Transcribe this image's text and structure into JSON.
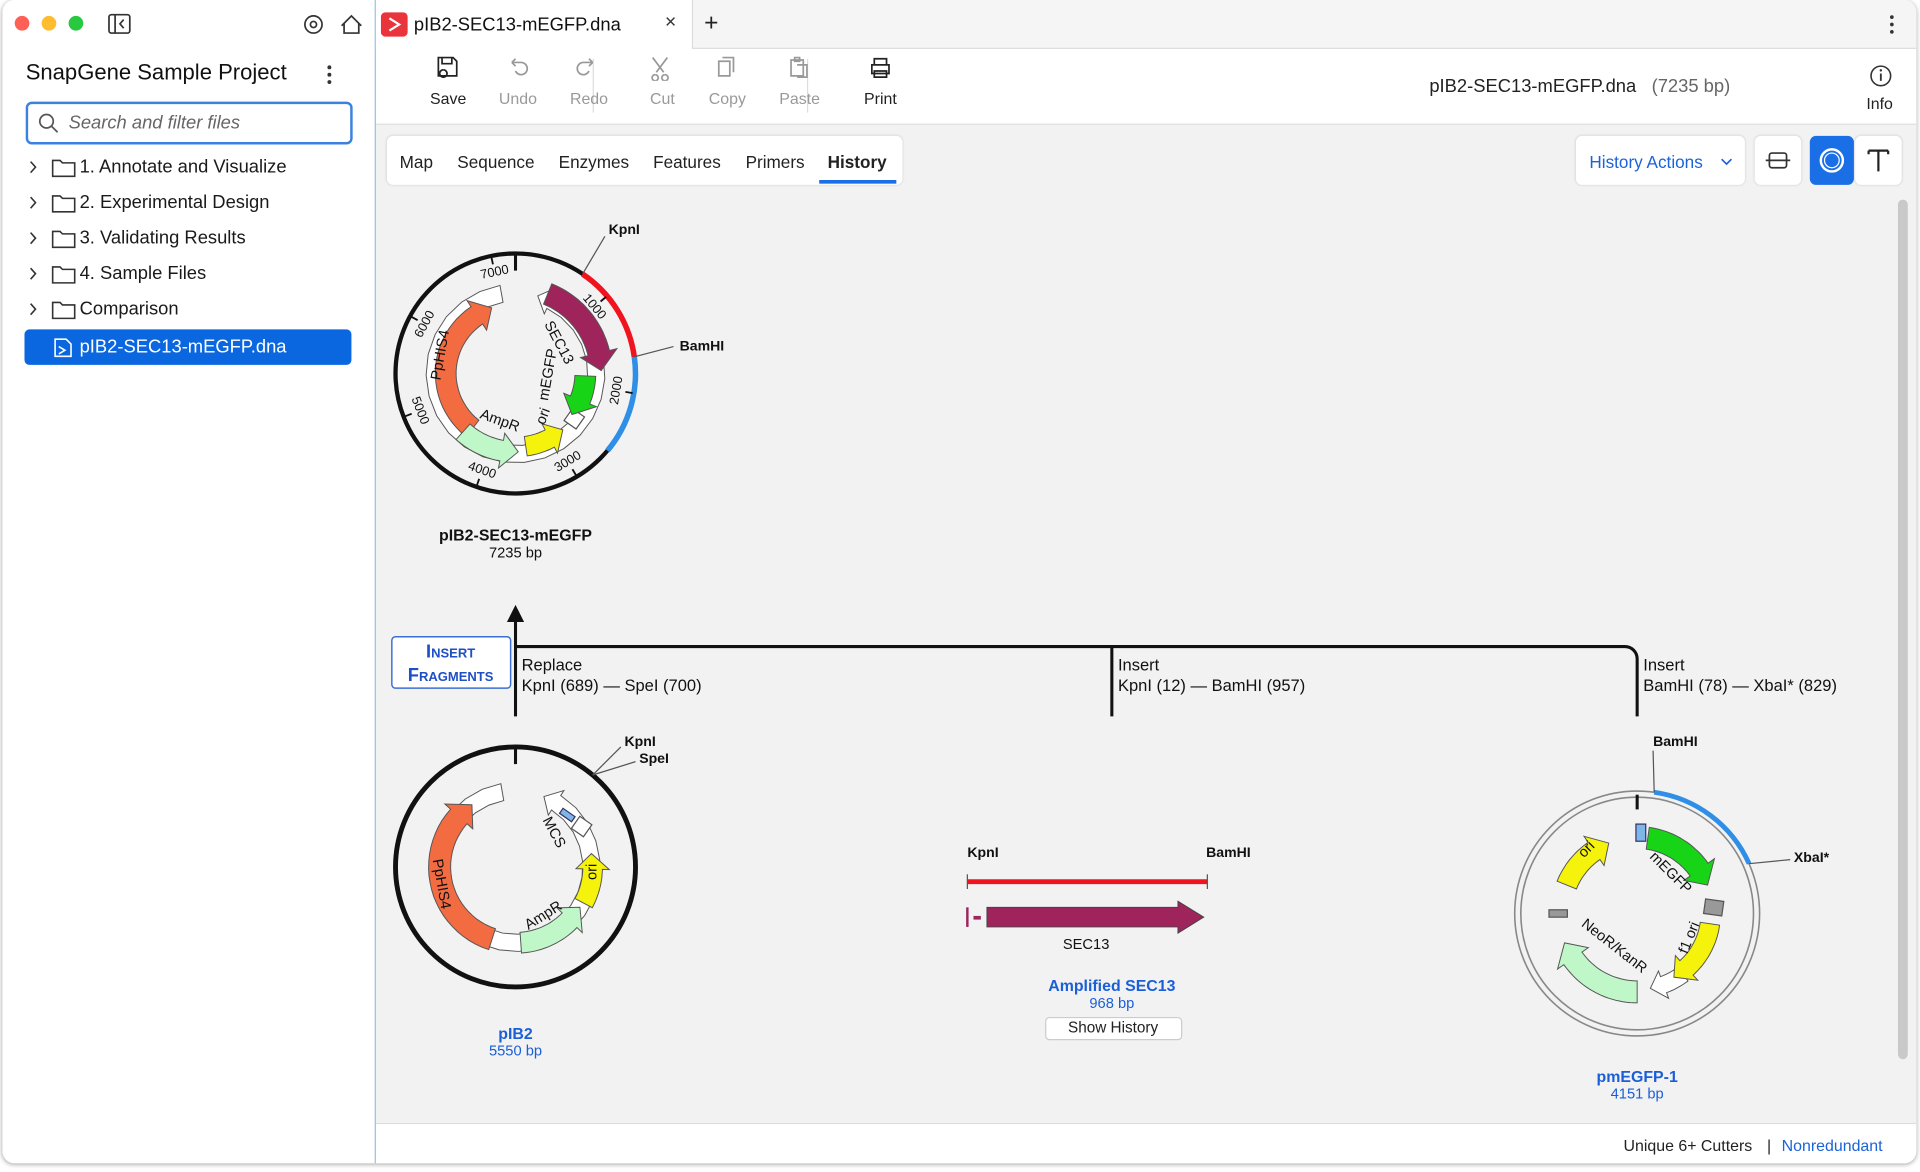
{
  "window": {
    "tab": "pIB2-SEC13-mEGFP.dna"
  },
  "sidebar": {
    "title": "SnapGene Sample Project",
    "search_placeholder": "Search and filter files",
    "folders": [
      "1. Annotate and Visualize",
      "2. Experimental Design",
      "3. Validating Results",
      "4. Sample Files",
      "Comparison"
    ],
    "selected_file": "pIB2-SEC13-mEGFP.dna"
  },
  "toolbar": {
    "buttons": [
      {
        "label": "Save",
        "enabled": true
      },
      {
        "label": "Undo",
        "enabled": false
      },
      {
        "label": "Redo",
        "enabled": false
      },
      {
        "label": "Cut",
        "enabled": false
      },
      {
        "label": "Copy",
        "enabled": false
      },
      {
        "label": "Paste",
        "enabled": false
      },
      {
        "label": "Print",
        "enabled": true
      }
    ],
    "file_name": "pIB2-SEC13-mEGFP.dna",
    "file_size": "(7235 bp)",
    "info": "Info"
  },
  "view_tabs": {
    "tabs": [
      "Map",
      "Sequence",
      "Enzymes",
      "Features",
      "Primers",
      "History"
    ],
    "active_tab": 5,
    "history_actions": "History Actions"
  },
  "history": {
    "product": {
      "name": "pIB2-SEC13-mEGFP",
      "size": "7235 bp",
      "sites": [
        "KpnI",
        "BamHI"
      ],
      "ticks": [
        1000,
        2000,
        3000,
        4000,
        5000,
        6000,
        7000
      ],
      "features": [
        "PpHIS4",
        "SEC13",
        "mEGFP",
        "ori",
        "AmpR"
      ]
    },
    "operation": "Insert Fragments",
    "inputs": [
      {
        "action": "Replace",
        "site_from": "KpnI (689)",
        "site_to": "SpeI (700)",
        "name": "pIB2",
        "size": "5550 bp",
        "sites": [
          "KpnI",
          "SpeI"
        ],
        "features": [
          "PpHIS4",
          "MCS",
          "ori",
          "AmpR"
        ]
      },
      {
        "action": "Insert",
        "site_from": "KpnI (12)",
        "site_to": "BamHI (957)",
        "name": "Amplified SEC13",
        "size": "968 bp",
        "sites": [
          "KpnI",
          "BamHI"
        ],
        "features": [
          "SEC13"
        ],
        "button": "Show History"
      },
      {
        "action": "Insert",
        "site_from": "BamHI (78)",
        "site_to": "XbaI* (829)",
        "name": "pmEGFP-1",
        "size": "4151 bp",
        "sites": [
          "BamHI",
          "XbaI*"
        ],
        "features": [
          "ori",
          "mEGFP",
          "f1 ori",
          "NeoR/KanR"
        ]
      }
    ]
  },
  "status_bar": {
    "cutters": "Unique 6+ Cutters",
    "mode": "Nonredundant"
  }
}
